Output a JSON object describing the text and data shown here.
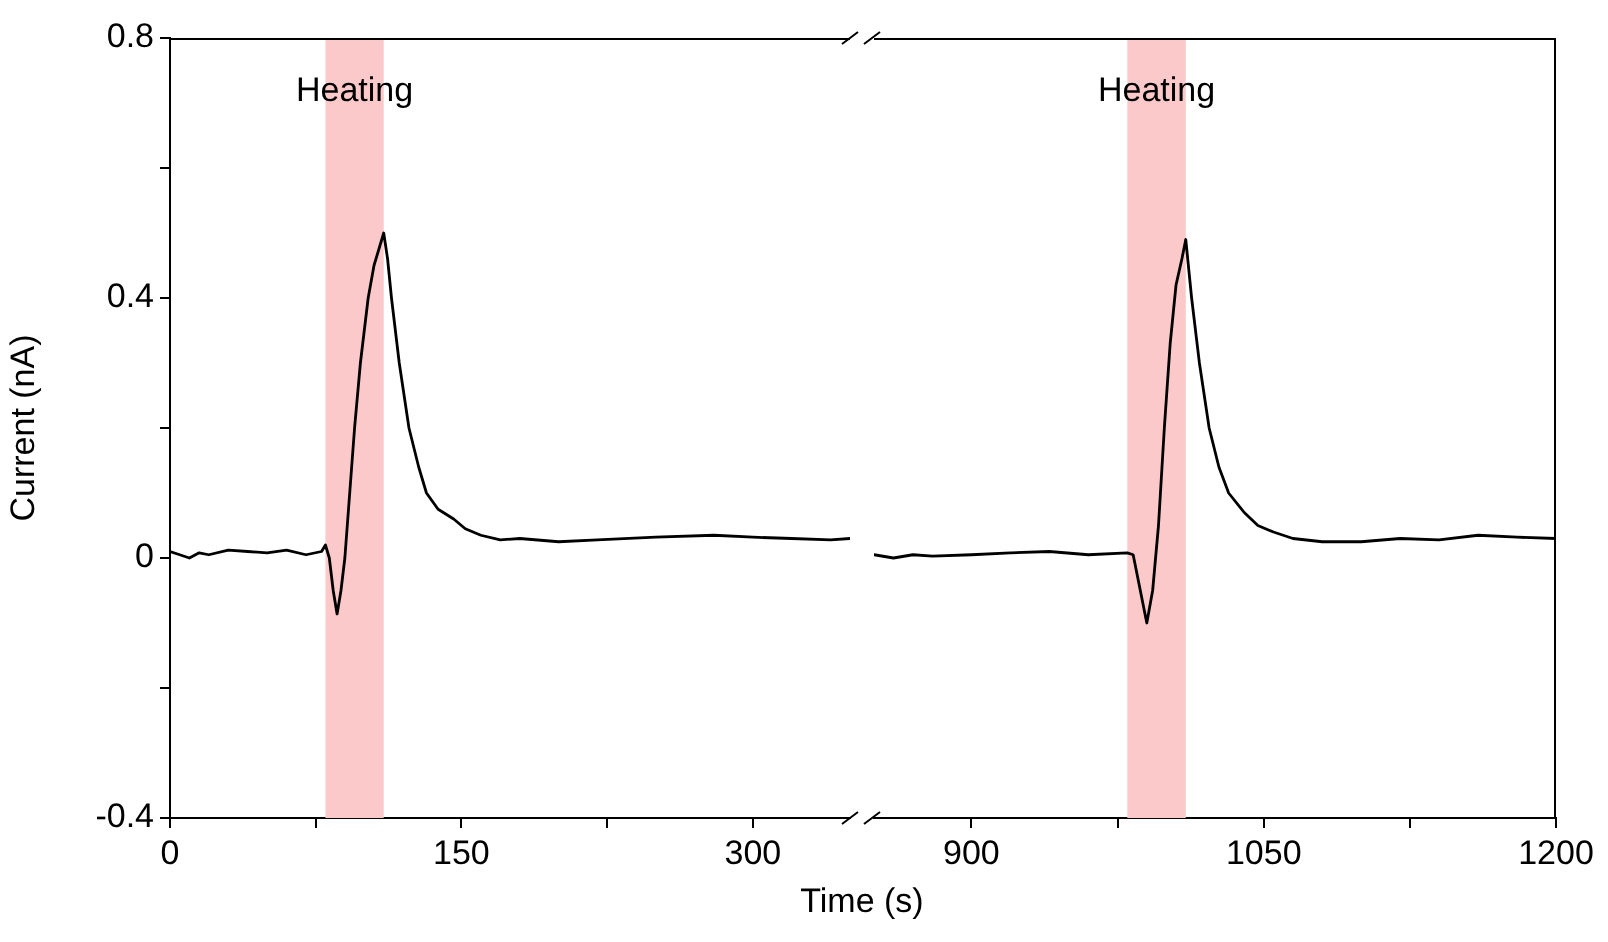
{
  "chart_data": [
    {
      "type": "line",
      "ylabel": "Current (nA)",
      "xlabel": "Time (s)",
      "xlim": [
        0,
        350
      ],
      "xticks": [
        0,
        {
          "value": 75,
          "label": null
        },
        150,
        {
          "value": 225,
          "label": null
        },
        300
      ],
      "ylim": [
        -0.4,
        0.8
      ],
      "yticks": [
        -0.4,
        {
          "value": -0.2,
          "label": null
        },
        0,
        {
          "value": 0.2,
          "label": null
        },
        0.4,
        {
          "value": 0.6,
          "label": null
        },
        0.8
      ],
      "bands": [
        {
          "axis": "x",
          "from": 80,
          "to": 110,
          "label": "Heating",
          "color": "#fbc9c9"
        }
      ],
      "series": [
        {
          "color": "#000000",
          "x": [
            0,
            5,
            10,
            15,
            20,
            30,
            40,
            50,
            60,
            70,
            78,
            80,
            82,
            84,
            86,
            88,
            90,
            92,
            95,
            98,
            102,
            105,
            108,
            110,
            112,
            114,
            118,
            123,
            128,
            132,
            138,
            146,
            152,
            160,
            170,
            180,
            200,
            220,
            250,
            280,
            300,
            320,
            340,
            350
          ],
          "values": [
            0.01,
            0.005,
            0.0,
            0.008,
            0.005,
            0.012,
            0.01,
            0.008,
            0.012,
            0.005,
            0.01,
            0.02,
            0.0,
            -0.05,
            -0.086,
            -0.05,
            0.0,
            0.08,
            0.2,
            0.3,
            0.4,
            0.45,
            0.48,
            0.5,
            0.46,
            0.4,
            0.3,
            0.2,
            0.14,
            0.1,
            0.075,
            0.06,
            0.045,
            0.035,
            0.028,
            0.03,
            0.025,
            0.028,
            0.032,
            0.035,
            0.032,
            0.03,
            0.028,
            0.03
          ]
        }
      ]
    },
    {
      "type": "line",
      "tick_labels": "x",
      "xlim": [
        850,
        1200
      ],
      "xticks": [
        900,
        {
          "value": 975,
          "label": null
        },
        1050,
        {
          "value": 1125,
          "label": null
        },
        1200
      ],
      "ylim": [
        -0.4,
        0.8
      ],
      "bands": [
        {
          "axis": "x",
          "from": 980,
          "to": 1010,
          "label": "Heating",
          "color": "#fbc9c9"
        }
      ],
      "series": [
        {
          "color": "#000000",
          "x": [
            850,
            860,
            870,
            880,
            900,
            920,
            940,
            960,
            980,
            983,
            986,
            990,
            993,
            996,
            999,
            1002,
            1005,
            1008,
            1010,
            1013,
            1017,
            1022,
            1027,
            1032,
            1040,
            1047,
            1055,
            1065,
            1080,
            1100,
            1120,
            1140,
            1160,
            1180,
            1200
          ],
          "values": [
            0.005,
            0.0,
            0.005,
            0.003,
            0.005,
            0.008,
            0.01,
            0.005,
            0.008,
            0.005,
            -0.04,
            -0.1,
            -0.05,
            0.05,
            0.2,
            0.33,
            0.42,
            0.46,
            0.49,
            0.4,
            0.3,
            0.2,
            0.14,
            0.1,
            0.07,
            0.05,
            0.04,
            0.03,
            0.025,
            0.025,
            0.03,
            0.028,
            0.035,
            0.032,
            0.03
          ]
        }
      ]
    }
  ]
}
